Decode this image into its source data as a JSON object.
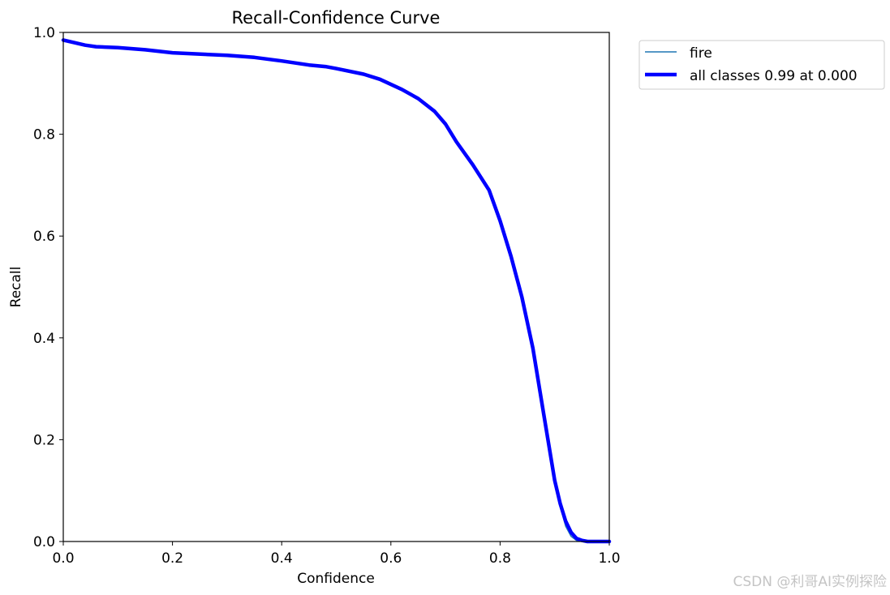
{
  "chart_data": {
    "type": "line",
    "title": "Recall-Confidence Curve",
    "xlabel": "Confidence",
    "ylabel": "Recall",
    "xlim": [
      0,
      1
    ],
    "ylim": [
      0,
      1
    ],
    "xticks": [
      "0.0",
      "0.2",
      "0.4",
      "0.6",
      "0.8",
      "1.0"
    ],
    "yticks": [
      "0.0",
      "0.2",
      "0.4",
      "0.6",
      "0.8",
      "1.0"
    ],
    "grid": false,
    "legend_position": "outside-top-right",
    "series": [
      {
        "name": "fire",
        "color": "#1f77b4",
        "line": "thin",
        "x": [
          0.0,
          0.02,
          0.04,
          0.06,
          0.1,
          0.15,
          0.2,
          0.3,
          0.35,
          0.4,
          0.45,
          0.48,
          0.5,
          0.55,
          0.58,
          0.6,
          0.62,
          0.65,
          0.68,
          0.7,
          0.72,
          0.75,
          0.78,
          0.8,
          0.82,
          0.84,
          0.86,
          0.88,
          0.9,
          0.91,
          0.92,
          0.93,
          0.94,
          0.95,
          0.96,
          1.0
        ],
        "y": [
          0.985,
          0.98,
          0.975,
          0.972,
          0.97,
          0.966,
          0.96,
          0.955,
          0.951,
          0.944,
          0.936,
          0.933,
          0.929,
          0.918,
          0.908,
          0.898,
          0.888,
          0.87,
          0.845,
          0.82,
          0.785,
          0.74,
          0.69,
          0.63,
          0.56,
          0.48,
          0.38,
          0.25,
          0.12,
          0.07,
          0.03,
          0.01,
          0.002,
          0.0,
          0.0,
          0.0
        ]
      },
      {
        "name": "all classes 0.99 at 0.000",
        "color": "#0000ff",
        "line": "thick",
        "x": [
          0.0,
          0.02,
          0.04,
          0.06,
          0.1,
          0.15,
          0.2,
          0.3,
          0.35,
          0.4,
          0.45,
          0.48,
          0.5,
          0.55,
          0.58,
          0.6,
          0.62,
          0.65,
          0.68,
          0.7,
          0.72,
          0.75,
          0.78,
          0.8,
          0.82,
          0.84,
          0.86,
          0.88,
          0.9,
          0.91,
          0.92,
          0.93,
          0.94,
          0.95,
          0.96,
          1.0
        ],
        "y": [
          0.985,
          0.98,
          0.975,
          0.972,
          0.97,
          0.966,
          0.96,
          0.955,
          0.951,
          0.944,
          0.936,
          0.933,
          0.929,
          0.918,
          0.908,
          0.898,
          0.888,
          0.87,
          0.845,
          0.82,
          0.785,
          0.74,
          0.69,
          0.63,
          0.56,
          0.48,
          0.38,
          0.25,
          0.12,
          0.075,
          0.04,
          0.018,
          0.006,
          0.002,
          0.0,
          0.0
        ]
      }
    ]
  },
  "watermark": "CSDN @利哥AI实例探险"
}
